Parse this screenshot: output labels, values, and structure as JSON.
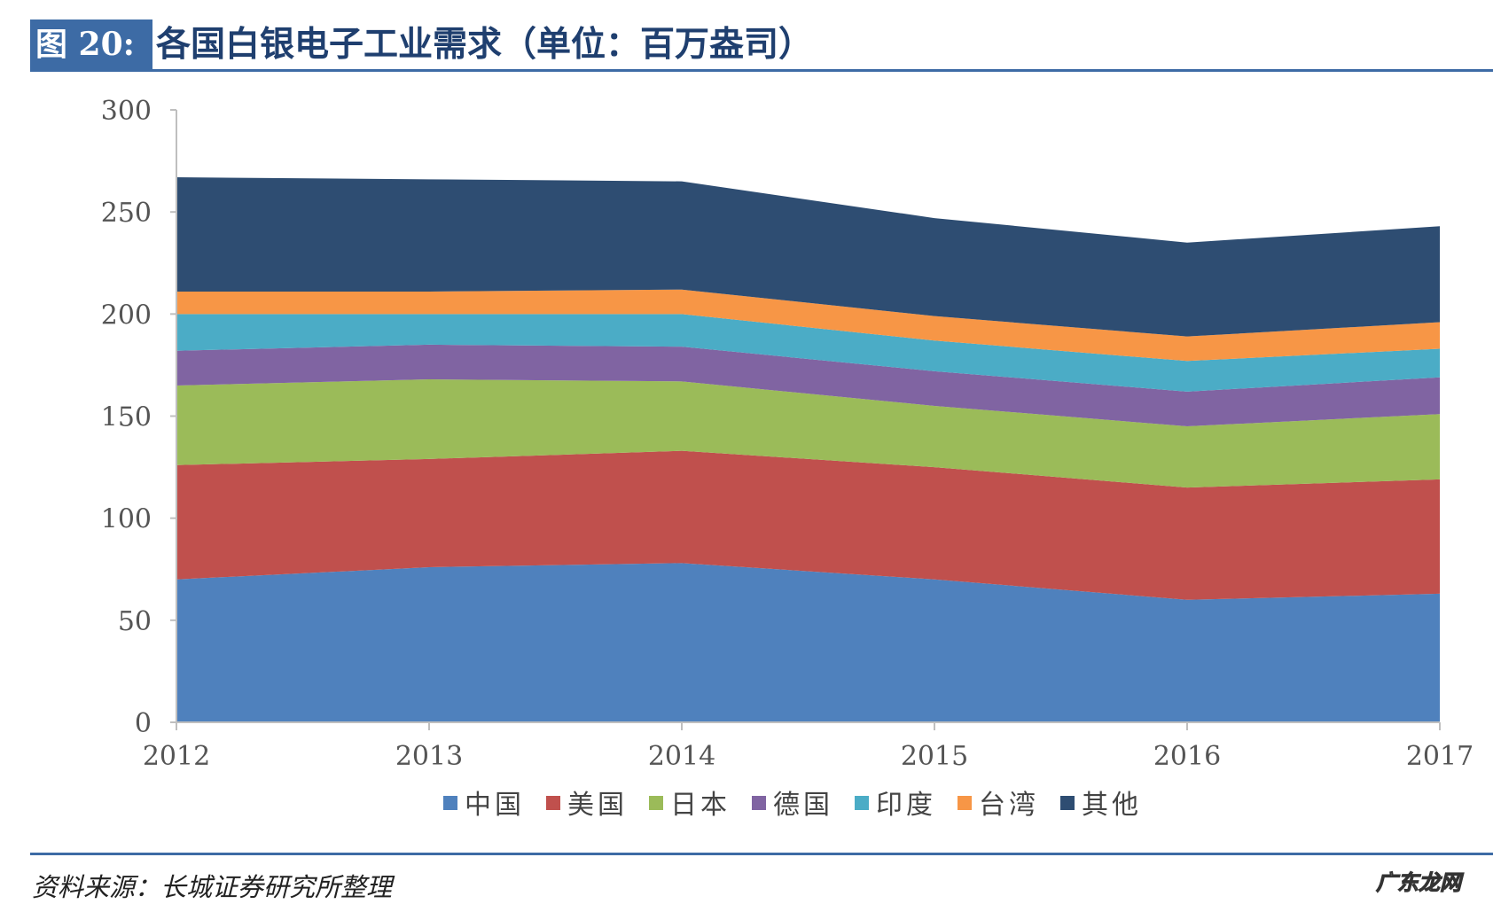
{
  "header": {
    "figure_label": "图 20:",
    "title": "各国白银电子工业需求（单位：百万盎司）"
  },
  "chart_data": {
    "type": "area",
    "stacked": true,
    "title": "各国白银电子工业需求（单位：百万盎司）",
    "xlabel": "",
    "ylabel": "",
    "x": [
      "2012",
      "2013",
      "2014",
      "2015",
      "2016",
      "2017"
    ],
    "ylim": [
      0,
      300
    ],
    "yticks": [
      "0",
      "50",
      "100",
      "150",
      "200",
      "250",
      "300"
    ],
    "grid": false,
    "legend_position": "bottom",
    "series": [
      {
        "name": "中国",
        "color": "#4f81bd",
        "values": [
          70,
          76,
          78,
          70,
          60,
          63
        ]
      },
      {
        "name": "美国",
        "color": "#c0504d",
        "values": [
          56,
          53,
          55,
          55,
          55,
          56
        ]
      },
      {
        "name": "日本",
        "color": "#9bbb59",
        "values": [
          39,
          39,
          34,
          30,
          30,
          32
        ]
      },
      {
        "name": "德国",
        "color": "#8064a2",
        "values": [
          17,
          17,
          17,
          17,
          17,
          18
        ]
      },
      {
        "name": "印度",
        "color": "#4bacc6",
        "values": [
          18,
          15,
          16,
          15,
          15,
          14
        ]
      },
      {
        "name": "台湾",
        "color": "#f79646",
        "values": [
          11,
          11,
          12,
          12,
          12,
          13
        ]
      },
      {
        "name": "其他",
        "color": "#2e4d72",
        "values": [
          56,
          55,
          53,
          48,
          46,
          47
        ]
      }
    ]
  },
  "footer": {
    "source": "资料来源：长城证券研究所整理",
    "watermark": "广东龙网"
  }
}
